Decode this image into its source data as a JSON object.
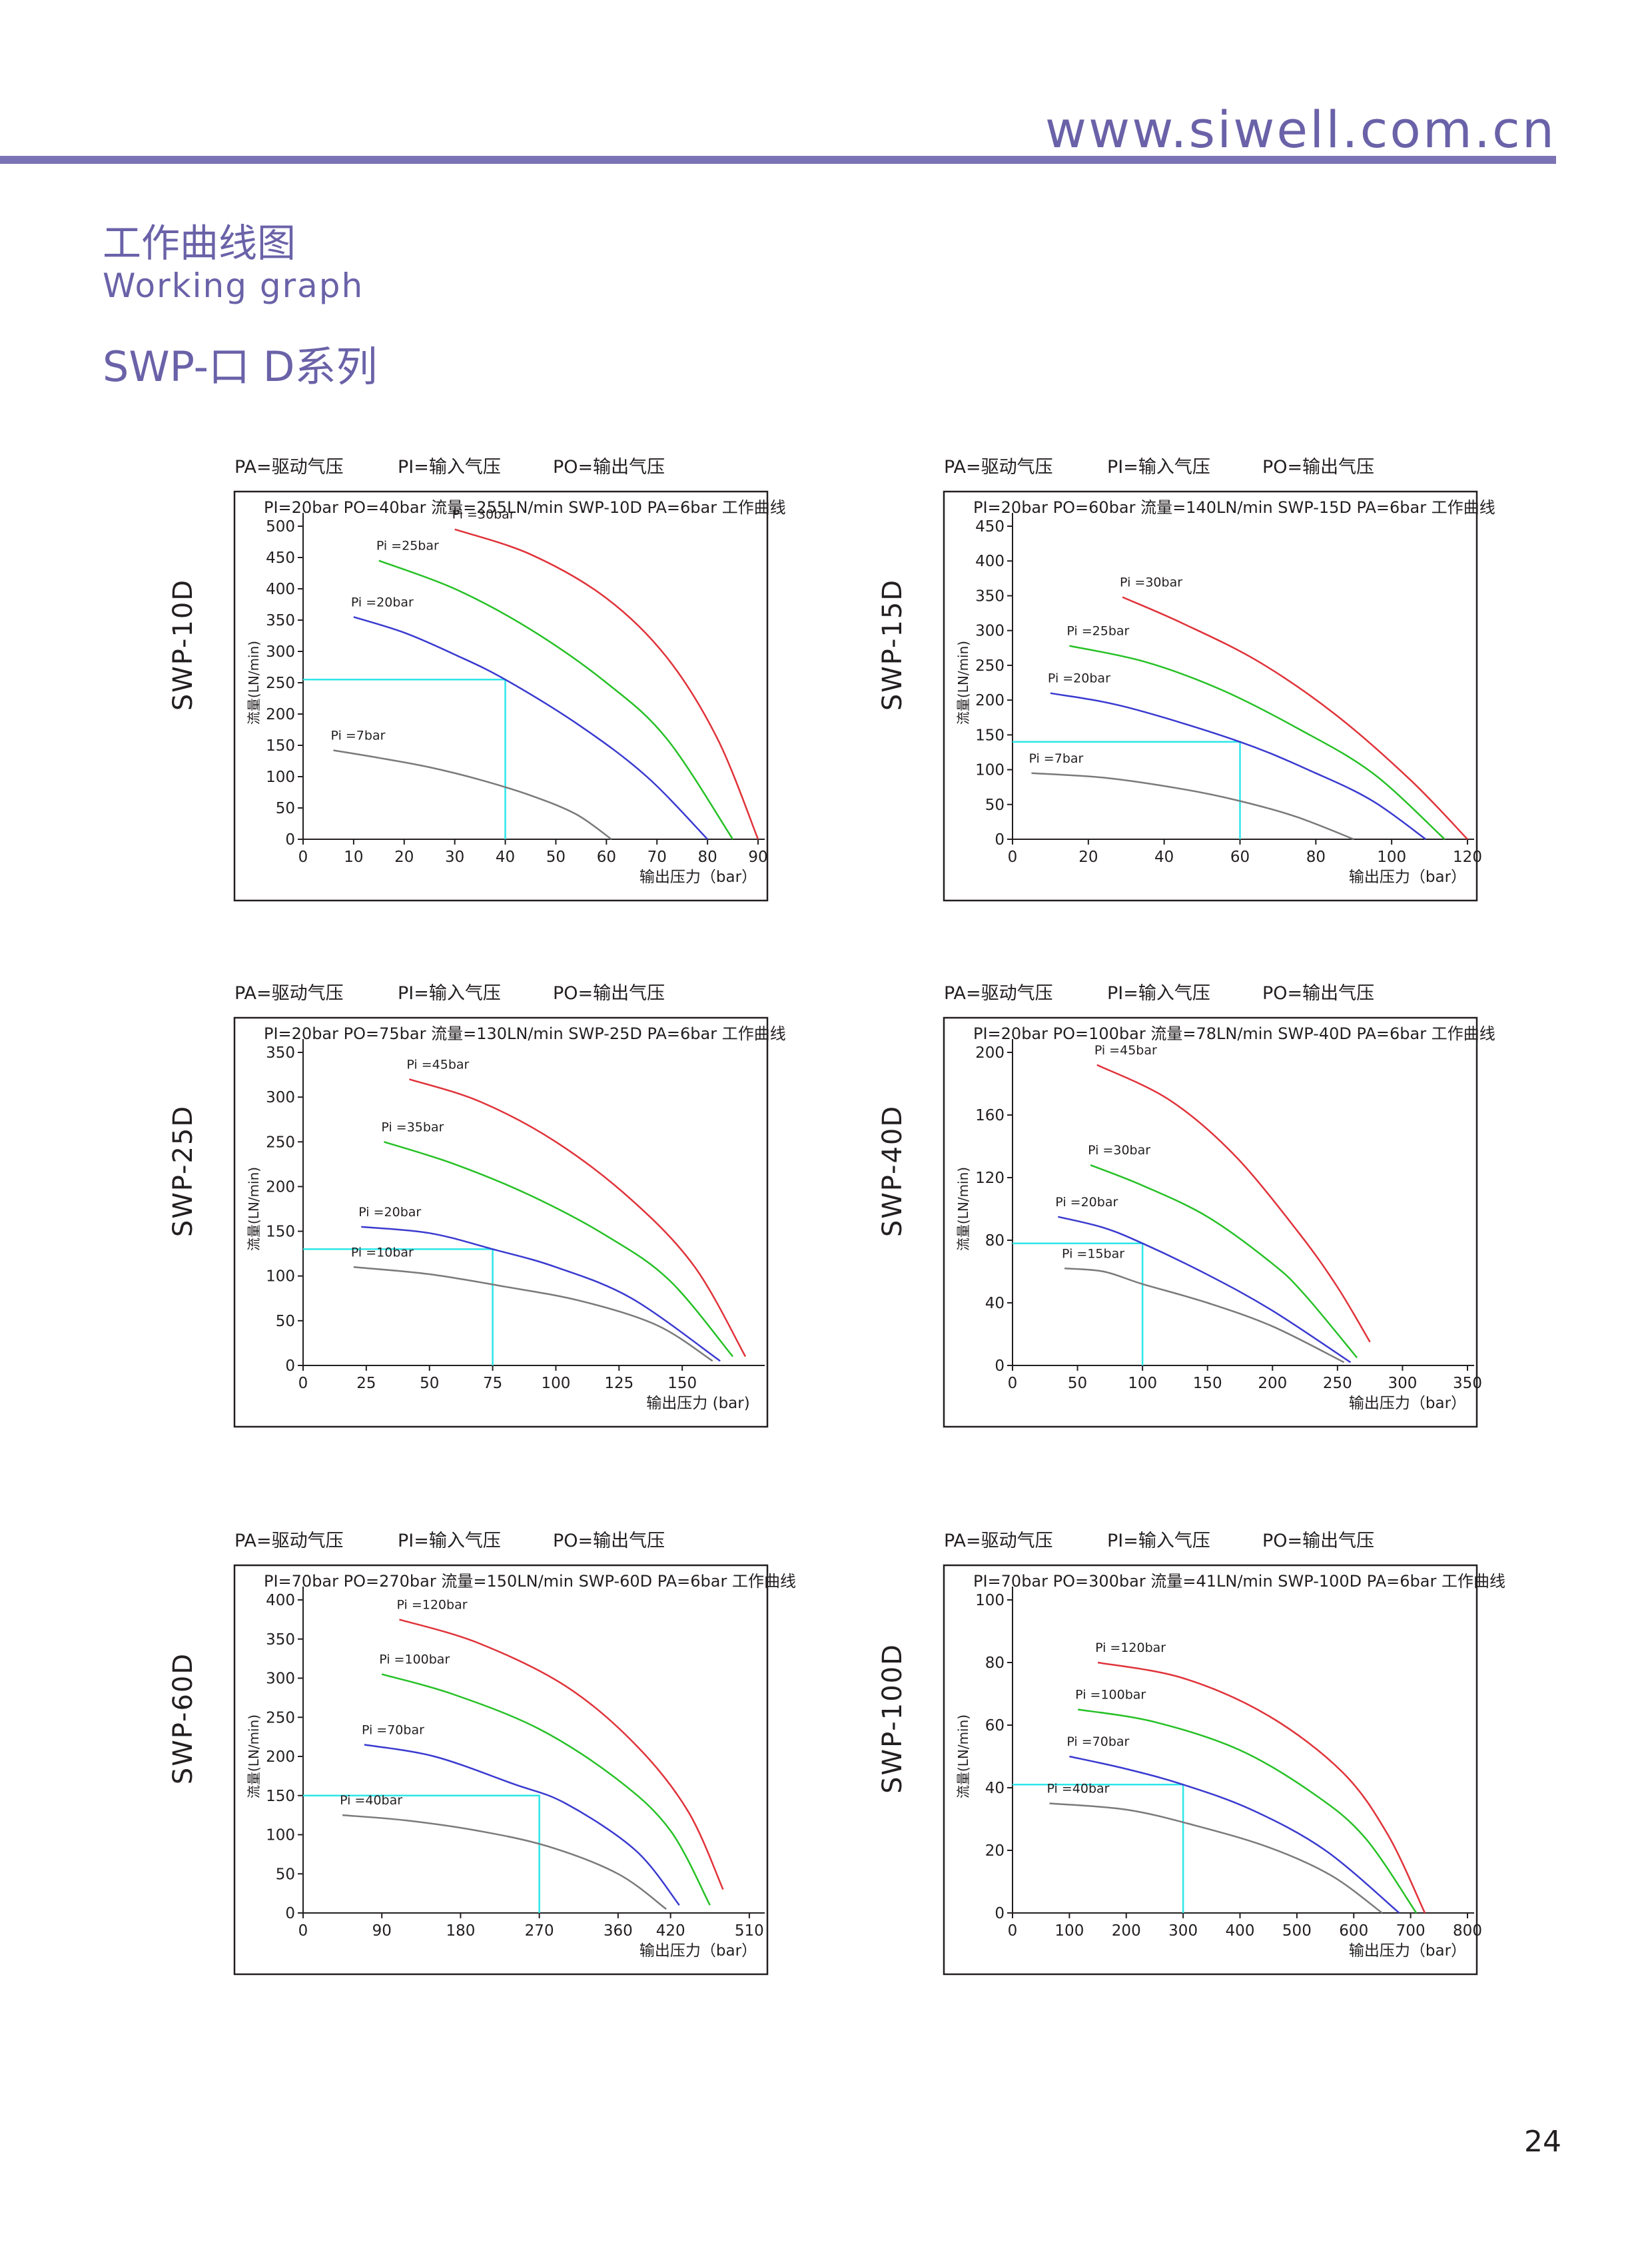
{
  "header": {
    "url": "www.siwell.com.cn"
  },
  "title_cn": "工作曲线图",
  "title_en": "Working graph",
  "series_title": "SWP-口 D系列",
  "page_number": "24",
  "legend_text": {
    "pa": "PA=驱动气压",
    "pi": "PI=输入气压",
    "po": "PO=输出气压"
  },
  "colors": {
    "accent": "#6a62a8",
    "reference": "#2ee6e8",
    "curve_high": "#e0333a",
    "curve_mid2": "#26c126",
    "curve_mid": "#3a3ad0",
    "curve_low": "#7a7a7a"
  },
  "chart_data": [
    {
      "type": "line",
      "model": "SWP-10D",
      "caption": "PI=20bar  PO=40bar  流量=255LN/min SWP-10D PA=6bar 工作曲线",
      "ylabel": "流量(LN/min)",
      "xlabel": "输出压力（bar）",
      "xlim": [
        0,
        90
      ],
      "ylim": [
        0,
        500
      ],
      "xticks": [
        "0",
        "10",
        "20",
        "30",
        "40",
        "50",
        "60",
        "70",
        "80",
        "90"
      ],
      "yticks": [
        "0",
        "50",
        "100",
        "150",
        "200",
        "250",
        "300",
        "350",
        "400",
        "450",
        "500"
      ],
      "reference": {
        "x": 40,
        "y": 255
      },
      "series": [
        {
          "name": "Pi =30bar",
          "x": [
            30,
            45,
            60,
            72,
            82,
            90
          ],
          "y": [
            495,
            455,
            385,
            290,
            160,
            0
          ]
        },
        {
          "name": "Pi =25bar",
          "x": [
            15,
            30,
            45,
            60,
            72,
            85
          ],
          "y": [
            445,
            400,
            335,
            250,
            160,
            0
          ]
        },
        {
          "name": "Pi =20bar",
          "x": [
            10,
            20,
            30,
            40,
            55,
            68,
            80
          ],
          "y": [
            355,
            330,
            295,
            255,
            180,
            100,
            0
          ]
        },
        {
          "name": "Pi =7bar",
          "x": [
            6,
            15,
            25,
            35,
            45,
            54,
            61
          ],
          "y": [
            142,
            130,
            115,
            95,
            70,
            40,
            0
          ]
        }
      ]
    },
    {
      "type": "line",
      "model": "SWP-15D",
      "caption": "PI=20bar  PO=60bar  流量=140LN/min SWP-15D PA=6bar 工作曲线",
      "ylabel": "流量(LN/min)",
      "xlabel": "输出压力（bar）",
      "xlim": [
        0,
        120
      ],
      "ylim": [
        0,
        450
      ],
      "xticks": [
        "0",
        "20",
        "40",
        "60",
        "80",
        "100",
        "120"
      ],
      "yticks": [
        "0",
        "50",
        "100",
        "150",
        "200",
        "250",
        "300",
        "350",
        "400",
        "450"
      ],
      "reference": {
        "x": 60,
        "y": 140
      },
      "series": [
        {
          "name": "Pi =30bar",
          "x": [
            29,
            45,
            65,
            85,
            105,
            120
          ],
          "y": [
            348,
            310,
            255,
            180,
            85,
            0
          ]
        },
        {
          "name": "Pi =25bar",
          "x": [
            15,
            35,
            55,
            75,
            95,
            114
          ],
          "y": [
            278,
            255,
            215,
            160,
            95,
            0
          ]
        },
        {
          "name": "Pi =20bar",
          "x": [
            10,
            30,
            60,
            80,
            95,
            109
          ],
          "y": [
            210,
            190,
            140,
            95,
            55,
            0
          ]
        },
        {
          "name": "Pi =7bar",
          "x": [
            5,
            25,
            45,
            60,
            75,
            90
          ],
          "y": [
            95,
            88,
            72,
            55,
            32,
            0
          ]
        }
      ]
    },
    {
      "type": "line",
      "model": "SWP-25D",
      "caption": "PI=20bar  PO=75bar  流量=130LN/min SWP-25D PA=6bar 工作曲线",
      "ylabel": "流量(LN/min)",
      "xlabel": "输出压力  (bar)",
      "xlim": [
        0,
        180
      ],
      "ylim": [
        0,
        350
      ],
      "xticks": [
        "0",
        "25",
        "50",
        "75",
        "100",
        "125",
        "150"
      ],
      "yticks": [
        "0",
        "50",
        "100",
        "150",
        "200",
        "250",
        "300",
        "350"
      ],
      "reference": {
        "x": 75,
        "y": 130
      },
      "series": [
        {
          "name": "Pi =45bar",
          "x": [
            42,
            70,
            100,
            130,
            155,
            175
          ],
          "y": [
            320,
            295,
            250,
            185,
            110,
            10
          ]
        },
        {
          "name": "Pi =35bar",
          "x": [
            32,
            60,
            90,
            120,
            145,
            170
          ],
          "y": [
            250,
            225,
            190,
            145,
            95,
            10
          ]
        },
        {
          "name": "Pi =20bar",
          "x": [
            23,
            50,
            75,
            100,
            130,
            165
          ],
          "y": [
            155,
            148,
            130,
            110,
            75,
            5
          ]
        },
        {
          "name": "Pi =10bar",
          "x": [
            20,
            50,
            80,
            110,
            140,
            162
          ],
          "y": [
            110,
            102,
            88,
            72,
            45,
            5
          ]
        }
      ]
    },
    {
      "type": "line",
      "model": "SWP-40D",
      "caption": "PI=20bar  PO=100bar  流量=78LN/min SWP-40D PA=6bar 工作曲线",
      "ylabel": "流量(LN/min)",
      "xlabel": "输出压力（bar）",
      "xlim": [
        0,
        350
      ],
      "ylim": [
        0,
        200
      ],
      "xticks": [
        "0",
        "50",
        "100",
        "150",
        "200",
        "250",
        "300",
        "350"
      ],
      "yticks": [
        "0",
        "40",
        "80",
        "120",
        "160",
        "200"
      ],
      "reference": {
        "x": 100,
        "y": 78
      },
      "series": [
        {
          "name": "Pi =45bar",
          "x": [
            65,
            120,
            170,
            220,
            250,
            275
          ],
          "y": [
            192,
            170,
            135,
            85,
            50,
            15
          ]
        },
        {
          "name": "Pi =30bar",
          "x": [
            60,
            100,
            150,
            200,
            225,
            265
          ],
          "y": [
            128,
            115,
            95,
            65,
            45,
            5
          ]
        },
        {
          "name": "Pi =20bar",
          "x": [
            35,
            70,
            100,
            150,
            200,
            260
          ],
          "y": [
            95,
            88,
            78,
            58,
            35,
            2
          ]
        },
        {
          "name": "Pi =15bar",
          "x": [
            40,
            70,
            100,
            150,
            200,
            255
          ],
          "y": [
            62,
            60,
            52,
            40,
            25,
            2
          ]
        }
      ]
    },
    {
      "type": "line",
      "model": "SWP-60D",
      "caption": "PI=70bar  PO=270bar  流量=150LN/min SWP-60D PA=6bar 工作曲线",
      "ylabel": "流量(LN/min)",
      "xlabel": "输出压力（bar）",
      "xlim": [
        0,
        520
      ],
      "ylim": [
        0,
        400
      ],
      "xticks": [
        "0",
        "90",
        "180",
        "270",
        "360",
        "420",
        "510"
      ],
      "yticks": [
        "0",
        "50",
        "100",
        "150",
        "200",
        "250",
        "300",
        "350",
        "400"
      ],
      "reference": {
        "x": 270,
        "y": 150
      },
      "series": [
        {
          "name": "Pi =120bar",
          "x": [
            110,
            200,
            300,
            380,
            440,
            480
          ],
          "y": [
            375,
            345,
            290,
            215,
            130,
            30
          ]
        },
        {
          "name": "Pi =100bar",
          "x": [
            90,
            170,
            270,
            360,
            420,
            465
          ],
          "y": [
            305,
            280,
            235,
            170,
            105,
            10
          ]
        },
        {
          "name": "Pi =70bar",
          "x": [
            70,
            150,
            240,
            300,
            380,
            430
          ],
          "y": [
            215,
            200,
            165,
            140,
            80,
            10
          ]
        },
        {
          "name": "Pi =40bar",
          "x": [
            45,
            120,
            200,
            280,
            360,
            415
          ],
          "y": [
            125,
            118,
            105,
            85,
            50,
            5
          ]
        }
      ]
    },
    {
      "type": "line",
      "model": "SWP-100D",
      "caption": "PI=70bar  PO=300bar  流量=41LN/min SWP-100D PA=6bar 工作曲线",
      "ylabel": "流量(LN/min)",
      "xlabel": "输出压力（bar）",
      "xlim": [
        0,
        800
      ],
      "ylim": [
        0,
        100
      ],
      "xticks": [
        "0",
        "100",
        "200",
        "300",
        "400",
        "500",
        "600",
        "700",
        "800"
      ],
      "yticks": [
        "0",
        "20",
        "40",
        "60",
        "80",
        "100"
      ],
      "reference": {
        "x": 300,
        "y": 41
      },
      "series": [
        {
          "name": "Pi =120bar",
          "x": [
            150,
            300,
            450,
            580,
            660,
            725
          ],
          "y": [
            80,
            75,
            63,
            45,
            25,
            0
          ]
        },
        {
          "name": "Pi =100bar",
          "x": [
            115,
            250,
            400,
            530,
            620,
            710
          ],
          "y": [
            65,
            61,
            52,
            38,
            24,
            0
          ]
        },
        {
          "name": "Pi =70bar",
          "x": [
            100,
            200,
            300,
            420,
            550,
            680
          ],
          "y": [
            50,
            46,
            41,
            33,
            20,
            0
          ]
        },
        {
          "name": "Pi =40bar",
          "x": [
            65,
            200,
            320,
            450,
            560,
            650
          ],
          "y": [
            35,
            33,
            28,
            21,
            12,
            0
          ]
        }
      ]
    }
  ]
}
